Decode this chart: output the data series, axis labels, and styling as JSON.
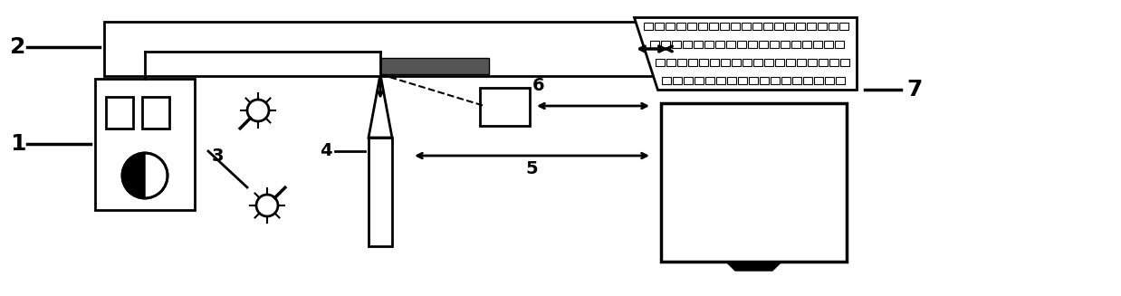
{
  "bg_color": "#ffffff",
  "line_color": "#000000",
  "label_1": "1",
  "label_2": "2",
  "label_3": "3",
  "label_4": "4",
  "label_5": "5",
  "label_6": "6",
  "label_7": "7",
  "figsize": [
    12.38,
    3.27
  ],
  "dpi": 100
}
